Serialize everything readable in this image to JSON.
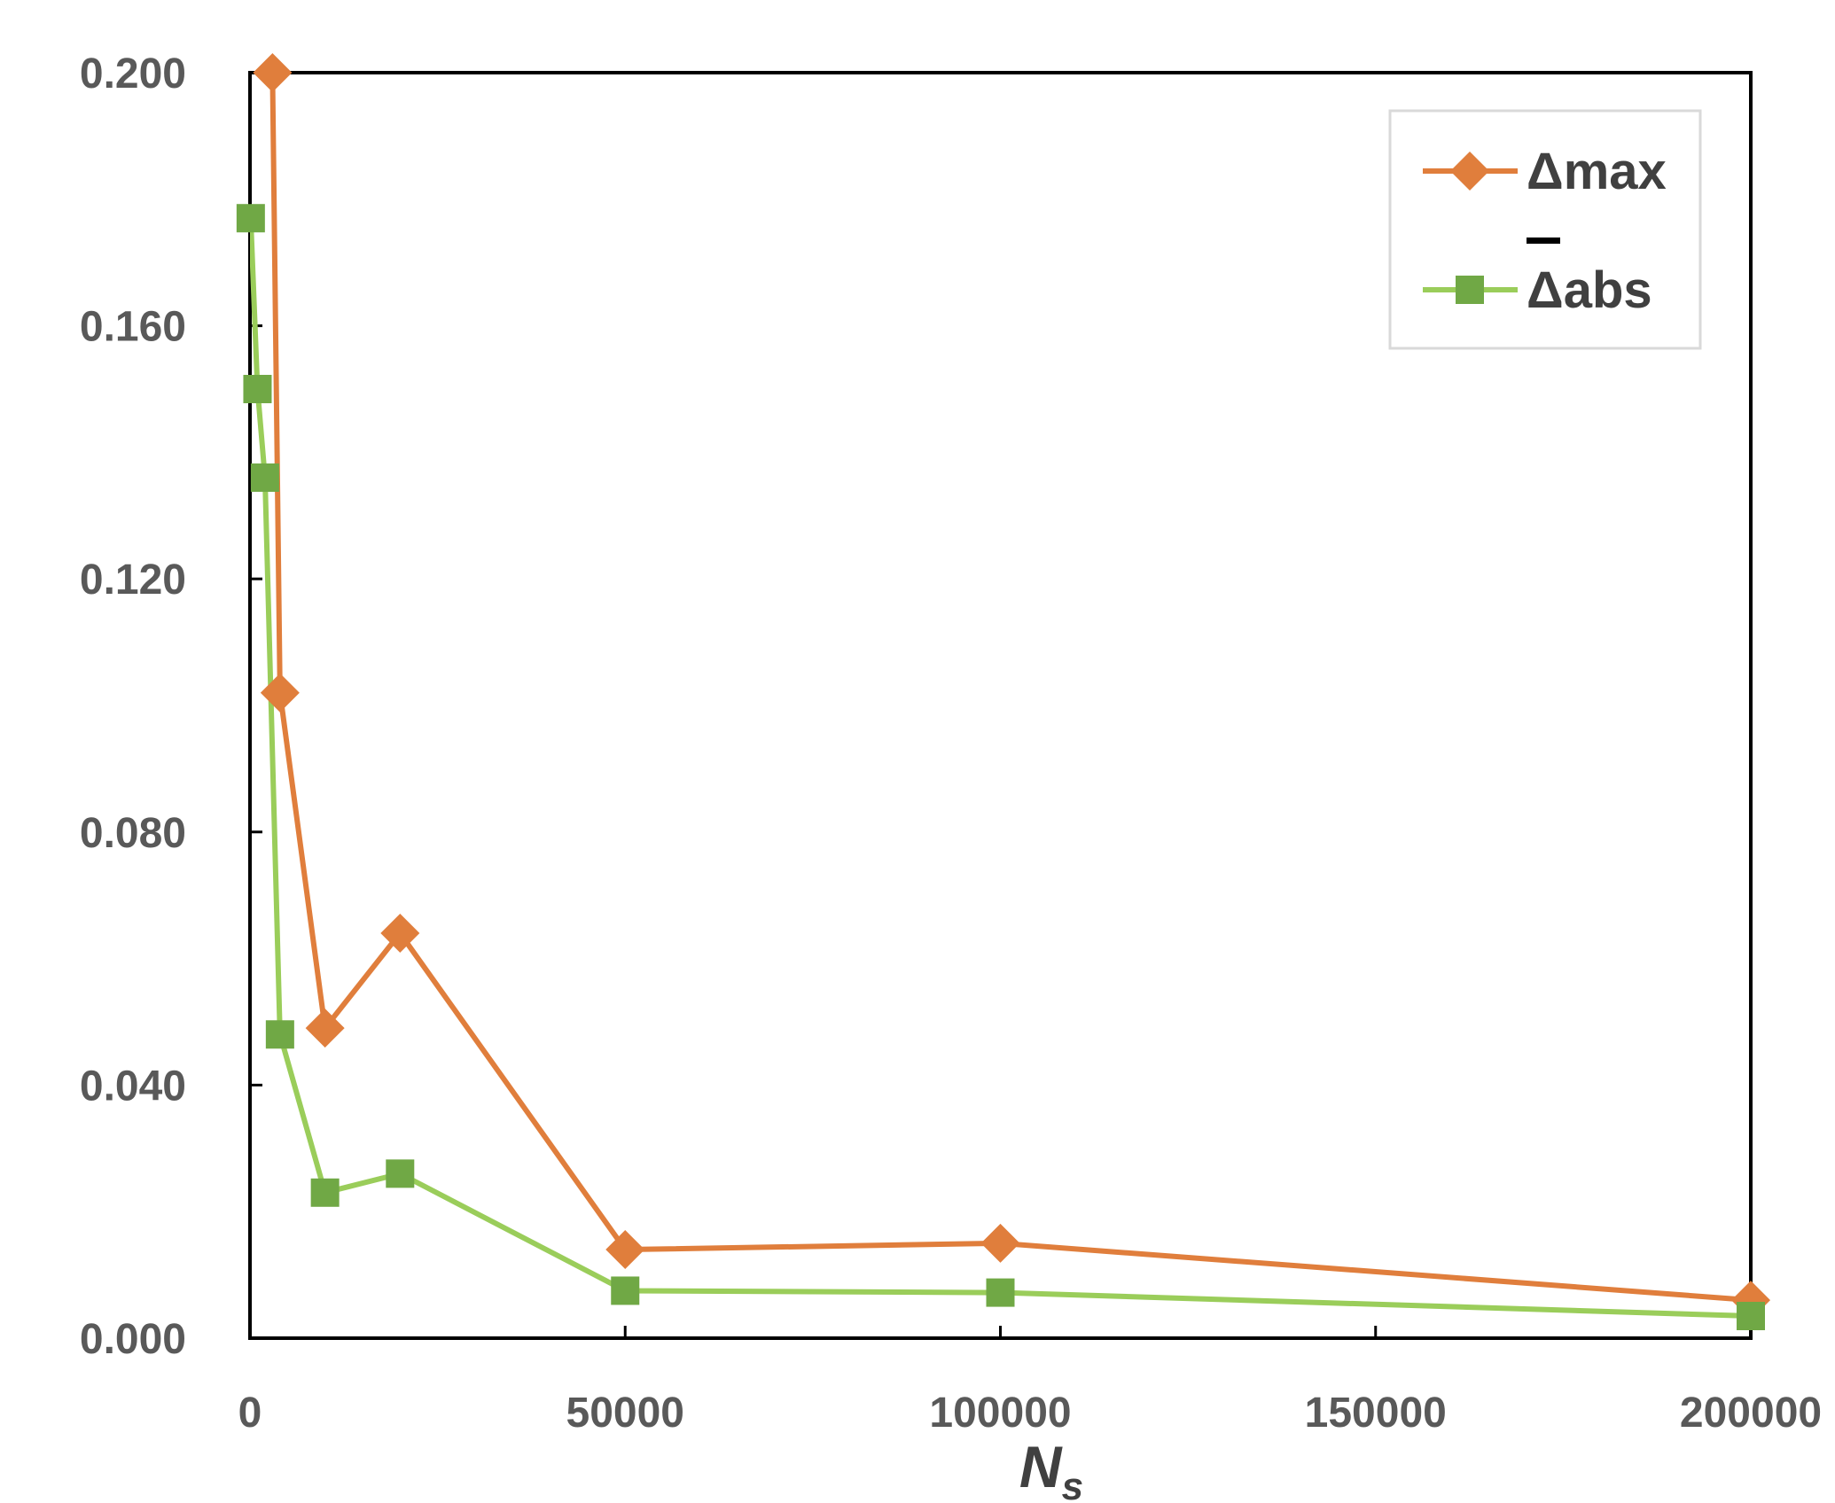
{
  "chart_data": {
    "type": "line",
    "xlabel_main": "N",
    "xlabel_sub": "s",
    "xlim": [
      0,
      200000
    ],
    "ylim": [
      0,
      0.2
    ],
    "x_ticks": [
      "0",
      "50000",
      "100000",
      "150000",
      "200000"
    ],
    "y_ticks": [
      "0.000",
      "0.040",
      "0.080",
      "0.120",
      "0.160",
      "0.200"
    ],
    "grid": false,
    "legend_position": "top-right",
    "series": [
      {
        "name": "Δmax",
        "legend_main": "Δ",
        "legend_rest": "max",
        "overline": false,
        "color": "#E07E3C",
        "marker": "diamond",
        "x": [
          3000,
          4000,
          10000,
          20000,
          50000,
          100000,
          200000
        ],
        "y": [
          0.2,
          0.102,
          0.049,
          0.064,
          0.014,
          0.015,
          0.006
        ]
      },
      {
        "name": "Δabs",
        "legend_main": "Δ",
        "legend_rest": "abs",
        "overline": true,
        "color": "#9ACD5A",
        "marker_color": "#70A845",
        "marker": "square",
        "x": [
          100,
          1000,
          2000,
          4000,
          10000,
          20000,
          50000,
          100000,
          200000
        ],
        "y": [
          0.177,
          0.15,
          0.136,
          0.048,
          0.023,
          0.026,
          0.0075,
          0.0072,
          0.0035
        ]
      }
    ]
  }
}
